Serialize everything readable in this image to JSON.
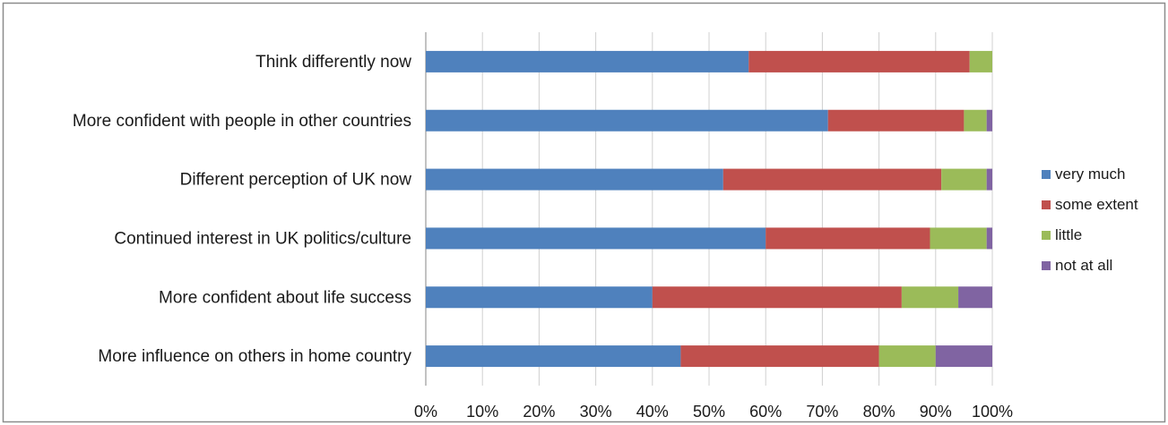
{
  "chart_data": {
    "type": "bar",
    "orientation": "horizontal",
    "stacked": "percent",
    "categories": [
      "Think differently now",
      "More confident with people in other countries",
      "Different perception of UK now",
      "Continued interest in UK politics/culture",
      "More confident about life success",
      "More influence on others in home country"
    ],
    "series": [
      {
        "name": "very much",
        "color": "#4f81bd",
        "values": [
          57,
          71,
          52.5,
          60,
          40,
          45
        ]
      },
      {
        "name": "some extent",
        "color": "#c0504d",
        "values": [
          39,
          24,
          38.5,
          29,
          44,
          35
        ]
      },
      {
        "name": "little",
        "color": "#9bbb59",
        "values": [
          4,
          4,
          8,
          10,
          10,
          10
        ]
      },
      {
        "name": "not at all",
        "color": "#8064a2",
        "values": [
          0,
          1,
          1,
          1,
          6,
          10
        ]
      }
    ],
    "x_ticks": [
      "0%",
      "10%",
      "20%",
      "30%",
      "40%",
      "50%",
      "60%",
      "70%",
      "80%",
      "90%",
      "100%"
    ],
    "xlim": [
      0,
      100
    ],
    "grid": "vertical",
    "legend": "right",
    "title": "",
    "xlabel": "",
    "ylabel": ""
  }
}
